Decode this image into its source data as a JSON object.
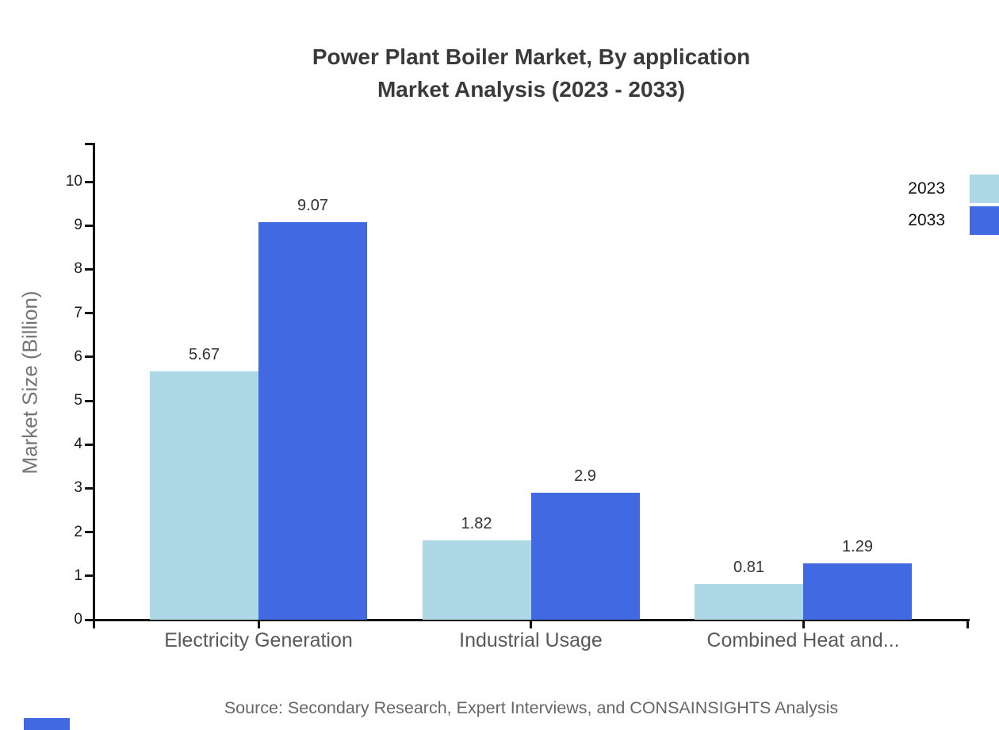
{
  "title": {
    "line1": "Power Plant Boiler Market, By application",
    "line2": "Market Analysis (2023 - 2033)"
  },
  "source": "Source: Secondary Research, Expert Interviews, and CONSAINSIGHTS Analysis",
  "legend": {
    "items": [
      {
        "label": "2023",
        "color": "#add8e6"
      },
      {
        "label": "2033",
        "color": "#4169e1"
      }
    ]
  },
  "chart_data": {
    "type": "bar",
    "title": "Power Plant Boiler Market, By application Market Analysis (2023 - 2033)",
    "categories": [
      "Electricity Generation",
      "Industrial Usage",
      "Combined Heat and..."
    ],
    "series": [
      {
        "name": "2023",
        "color": "#add8e6",
        "values": [
          5.67,
          1.82,
          0.81
        ]
      },
      {
        "name": "2033",
        "color": "#4169e1",
        "values": [
          9.07,
          2.9,
          1.29
        ]
      }
    ],
    "xlabel": "",
    "ylabel": "Market Size (Billion)",
    "ylim": [
      0,
      10
    ],
    "yticks": [
      0,
      1,
      2,
      3,
      4,
      5,
      6,
      7,
      8,
      9,
      10
    ],
    "grid": false,
    "legend_position": "top-right",
    "value_labels_shown": true
  },
  "colors": {
    "axis": "#111111",
    "title_text": "#3a3a3a",
    "category_text": "#595959",
    "value_text": "#333333",
    "tick_text": "#1a1a1a",
    "ylabel_text": "#757575",
    "source_text": "#666666",
    "series_2023": "#add8e6",
    "series_2033": "#4169e1",
    "brand_mark": "#4169e1"
  }
}
